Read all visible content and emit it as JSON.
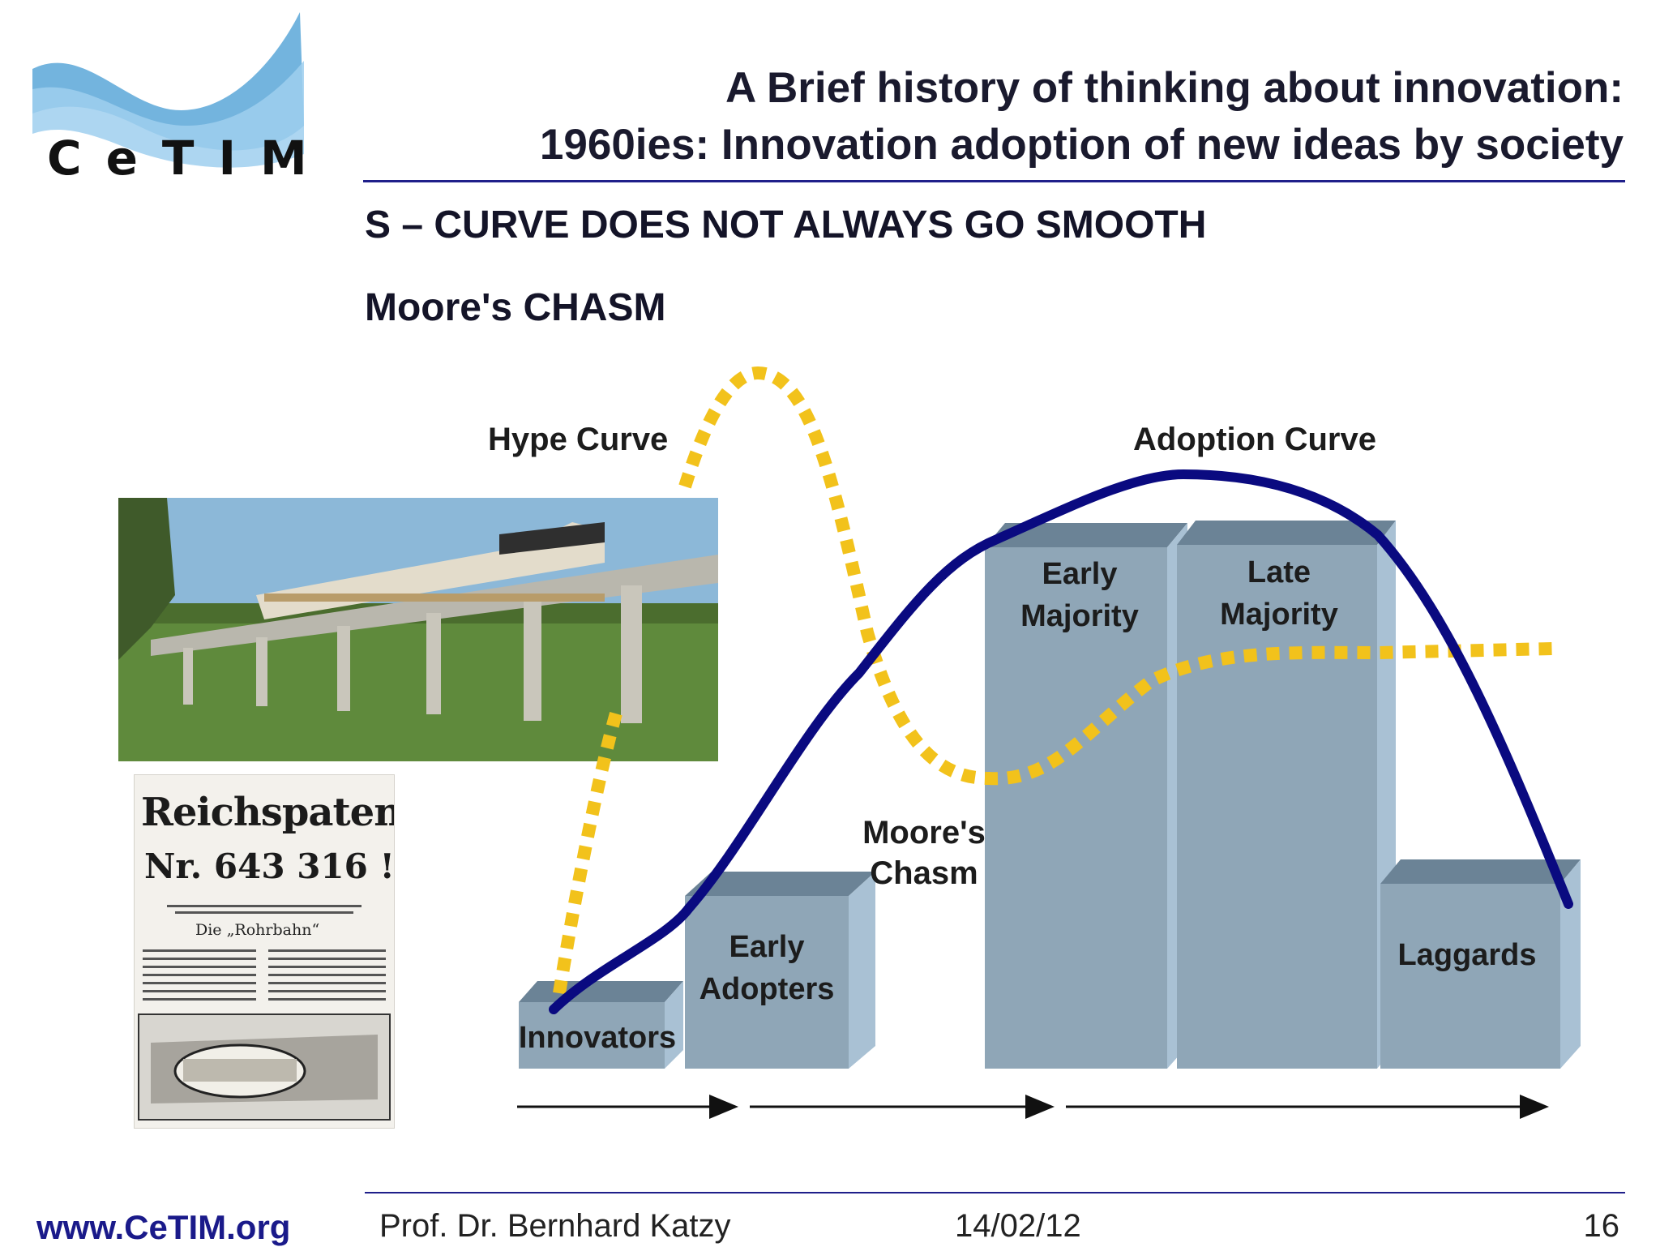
{
  "header": {
    "logo_text": "CeTIM",
    "title_line1": "A Brief history of thinking about innovation:",
    "title_line2": "1960ies: Innovation adoption of new ideas by society"
  },
  "headings": {
    "h1": "S – CURVE DOES NOT ALWAYS GO SMOOTH",
    "h2": "Moore's CHASM"
  },
  "diagram": {
    "hype_label": "Hype Curve",
    "adoption_label": "Adoption Curve",
    "chasm_label_line1": "Moore's",
    "chasm_label_line2": "Chasm",
    "segments": [
      {
        "line1": "Innovators",
        "line2": ""
      },
      {
        "line1": "Early",
        "line2": "Adopters"
      },
      {
        "line1": "Early",
        "line2": "Majority"
      },
      {
        "line1": "Late",
        "line2": "Majority"
      },
      {
        "line1": "Laggards",
        "line2": ""
      }
    ],
    "colors": {
      "bar_front": "#8fa6b7",
      "bar_top": "#6b8396",
      "bar_side": "#a9c1d4",
      "adoption_curve": "#0a0a80",
      "hype_curve": "#f2c21b"
    }
  },
  "paper": {
    "title": "Reichspatent",
    "number": "Nr. 643 316 !",
    "subtitle": "Die „Rohrbahn“"
  },
  "footer": {
    "url": "www.CeTIM.org",
    "author": "Prof. Dr. Bernhard Katzy",
    "date": "14/02/12",
    "page": "16"
  }
}
